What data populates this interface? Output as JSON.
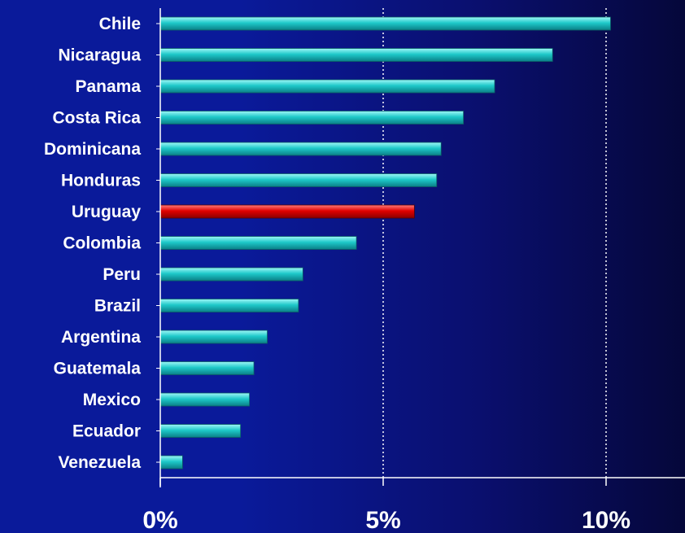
{
  "colors": {
    "bar": "#1ec9c9",
    "highlight": "#e00000",
    "axis": "#ffffff"
  },
  "chart_data": {
    "type": "bar",
    "orientation": "horizontal",
    "categories": [
      "Chile",
      "Nicaragua",
      "Panama",
      "Costa Rica",
      "Dominicana",
      "Honduras",
      "Uruguay",
      "Colombia",
      "Peru",
      "Brazil",
      "Argentina",
      "Guatemala",
      "Mexico",
      "Ecuador",
      "Venezuela"
    ],
    "values": [
      10.1,
      8.8,
      7.5,
      6.8,
      6.3,
      6.2,
      5.7,
      4.4,
      3.2,
      3.1,
      2.4,
      2.1,
      2.0,
      1.8,
      0.5
    ],
    "highlight": "Uruguay",
    "xlim": [
      0,
      11.75
    ],
    "xticks": [
      0,
      5,
      10
    ],
    "xtick_labels": [
      "0%",
      "5%",
      "10%"
    ],
    "grid": "vertical dotted lines at 5% and 10%",
    "title": "",
    "xlabel": "",
    "ylabel": ""
  }
}
